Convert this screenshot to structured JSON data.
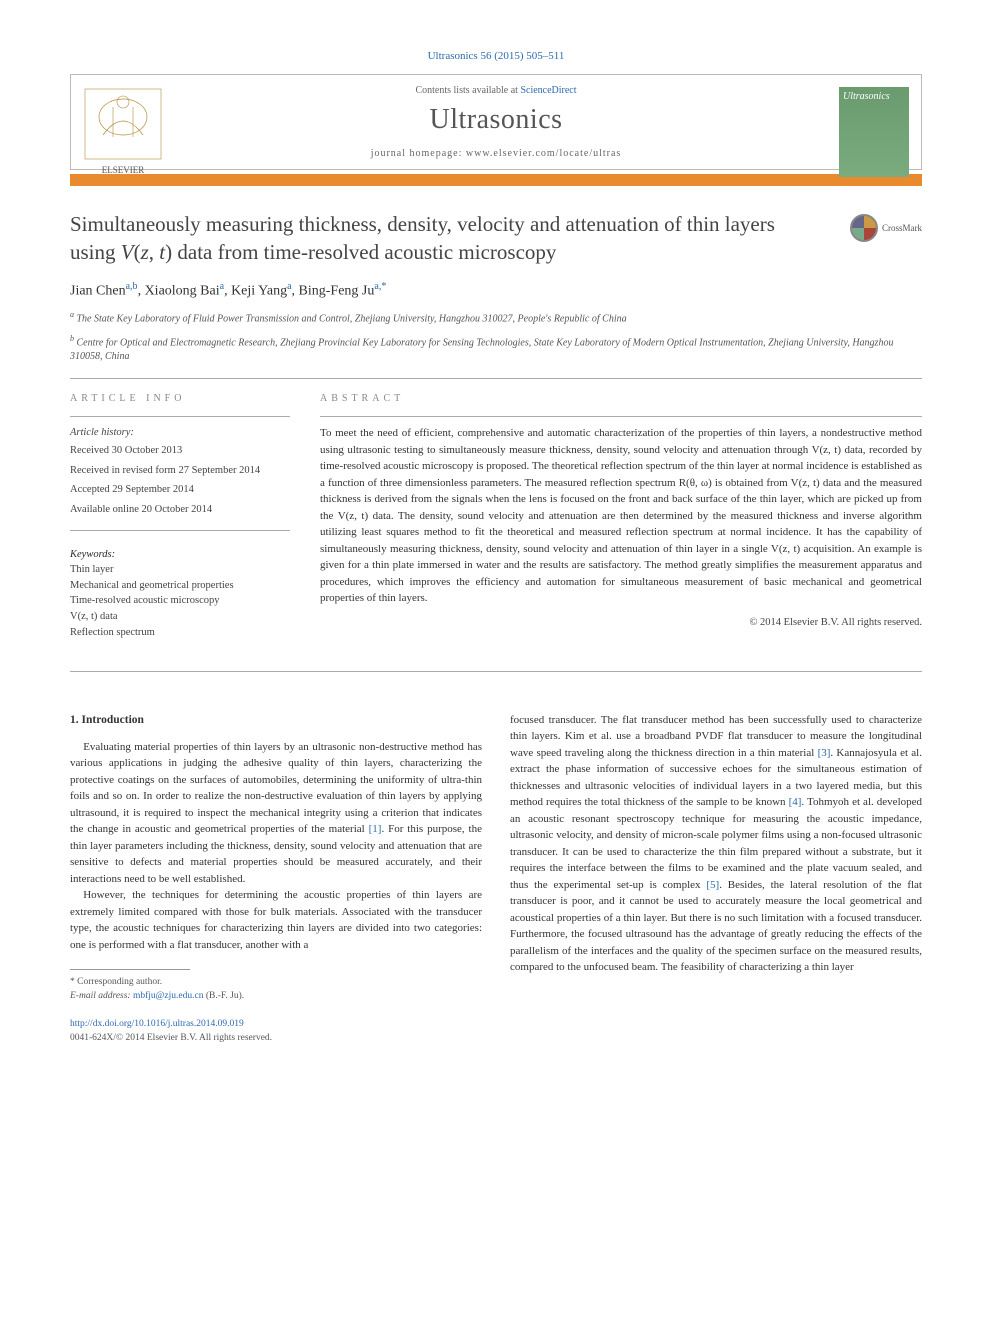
{
  "journal_ref": "Ultrasonics 56 (2015) 505–511",
  "header": {
    "contents_prefix": "Contents lists available at ",
    "contents_link": "ScienceDirect",
    "journal_name": "Ultrasonics",
    "homepage_prefix": "journal homepage: ",
    "homepage": "www.elsevier.com/locate/ultras",
    "publisher": "ELSEVIER",
    "cover_text": "Ultrasonics"
  },
  "title": "Simultaneously measuring thickness, density, velocity and attenuation of thin layers using V(z, t) data from time-resolved acoustic microscopy",
  "crossmark": "CrossMark",
  "authors": {
    "a1_name": "Jian Chen",
    "a1_sup": "a,b",
    "a2_name": "Xiaolong Bai",
    "a2_sup": "a",
    "a3_name": "Keji Yang",
    "a3_sup": "a",
    "a4_name": "Bing-Feng Ju",
    "a4_sup": "a,*"
  },
  "affiliations": {
    "a": "The State Key Laboratory of Fluid Power Transmission and Control, Zhejiang University, Hangzhou 310027, People's Republic of China",
    "b": "Centre for Optical and Electromagnetic Research, Zhejiang Provincial Key Laboratory for Sensing Technologies, State Key Laboratory of Modern Optical Instrumentation, Zhejiang University, Hangzhou 310058, China"
  },
  "info": {
    "label": "article info",
    "history_head": "Article history:",
    "received": "Received 30 October 2013",
    "revised": "Received in revised form 27 September 2014",
    "accepted": "Accepted 29 September 2014",
    "online": "Available online 20 October 2014",
    "keywords_head": "Keywords:",
    "kw1": "Thin layer",
    "kw2": "Mechanical and geometrical properties",
    "kw3": "Time-resolved acoustic microscopy",
    "kw4": "V(z, t) data",
    "kw5": "Reflection spectrum"
  },
  "abstract": {
    "label": "abstract",
    "text": "To meet the need of efficient, comprehensive and automatic characterization of the properties of thin layers, a nondestructive method using ultrasonic testing to simultaneously measure thickness, density, sound velocity and attenuation through V(z, t) data, recorded by time-resolved acoustic microscopy is proposed. The theoretical reflection spectrum of the thin layer at normal incidence is established as a function of three dimensionless parameters. The measured reflection spectrum R(θ, ω) is obtained from V(z, t) data and the measured thickness is derived from the signals when the lens is focused on the front and back surface of the thin layer, which are picked up from the V(z, t) data. The density, sound velocity and attenuation are then determined by the measured thickness and inverse algorithm utilizing least squares method to fit the theoretical and measured reflection spectrum at normal incidence. It has the capability of simultaneously measuring thickness, density, sound velocity and attenuation of thin layer in a single V(z, t) acquisition. An example is given for a thin plate immersed in water and the results are satisfactory. The method greatly simplifies the measurement apparatus and procedures, which improves the efficiency and automation for simultaneous measurement of basic mechanical and geometrical properties of thin layers.",
    "copyright": "© 2014 Elsevier B.V. All rights reserved."
  },
  "body": {
    "heading": "1. Introduction",
    "p1a": "Evaluating material properties of thin layers by an ultrasonic non-destructive method has various applications in judging the adhesive quality of thin layers, characterizing the protective coatings on the surfaces of automobiles, determining the uniformity of ultra-thin foils and so on. In order to realize the non-destructive evaluation of thin layers by applying ultrasound, it is required to inspect the mechanical integrity using a criterion that indicates the change in acoustic and geometrical properties of the material ",
    "ref1": "[1]",
    "p1b": ". For this purpose, the thin layer parameters including the thickness, density, sound velocity and attenuation that are sensitive to defects and material properties should be measured accurately, and their interactions need to be well established.",
    "p2": "However, the techniques for determining the acoustic properties of thin layers are extremely limited compared with those for bulk materials. Associated with the transducer type, the acoustic techniques for characterizing thin layers are divided into two categories: one is performed with a flat transducer, another with a",
    "p3a": "focused transducer. The flat transducer method has been successfully used to characterize thin layers. Kim et al. use a broadband PVDF flat transducer to measure the longitudinal wave speed traveling along the thickness direction in a thin material ",
    "ref3": "[3]",
    "p3b": ". Kannajosyula et al. extract the phase information of successive echoes for the simultaneous estimation of thicknesses and ultrasonic velocities of individual layers in a two layered media, but this method requires the total thickness of the sample to be known ",
    "ref4": "[4]",
    "p3c": ". Tohmyoh et al. developed an acoustic resonant spectroscopy technique for measuring the acoustic impedance, ultrasonic velocity, and density of micron-scale polymer films using a non-focused ultrasonic transducer. It can be used to characterize the thin film prepared without a substrate, but it requires the interface between the films to be examined and the plate vacuum sealed, and thus the experimental set-up is complex ",
    "ref5": "[5]",
    "p3d": ". Besides, the lateral resolution of the flat transducer is poor, and it cannot be used to accurately measure the local geometrical and acoustical properties of a thin layer. But there is no such limitation with a focused transducer. Furthermore, the focused ultrasound has the advantage of greatly reducing the effects of the parallelism of the interfaces and the quality of the specimen surface on the measured results, compared to the unfocused beam. The feasibility of characterizing a thin layer"
  },
  "footnote": {
    "corr": "* Corresponding author.",
    "email_label": "E-mail address: ",
    "email": "mbfju@zju.edu.cn",
    "email_suffix": " (B.-F. Ju)."
  },
  "doi": {
    "link": "http://dx.doi.org/10.1016/j.ultras.2014.09.019",
    "issn": "0041-624X/© 2014 Elsevier B.V. All rights reserved."
  },
  "colors": {
    "link": "#2d6aad",
    "orange": "#ea8a2e",
    "cover_bg": "#6a9b6e"
  }
}
